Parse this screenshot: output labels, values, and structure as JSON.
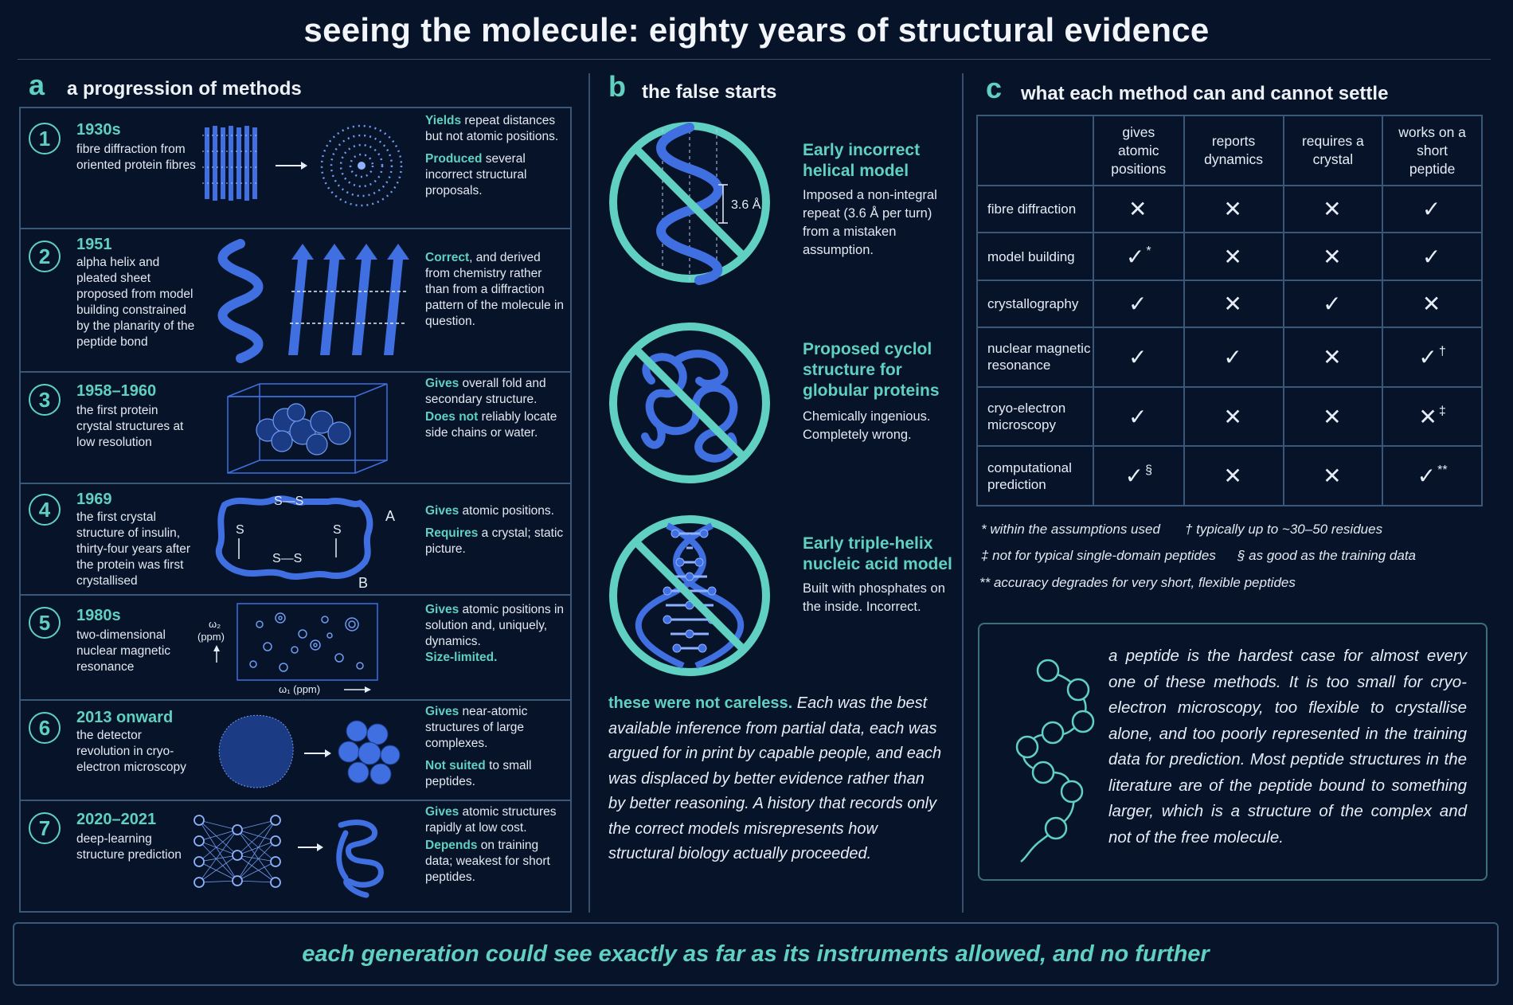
{
  "title": "seeing the molecule: eighty years of structural evidence",
  "panel_a": {
    "letter": "a",
    "heading": "a progression of methods",
    "rows": [
      {
        "num": "1",
        "year": "1930s",
        "desc": "fibre diffraction from oriented protein fibres",
        "n1_lead": "Yields",
        "n1_text": " repeat distances but not atomic positions.",
        "n2_lead": "Produced",
        "n2_text": " several incorrect structural proposals."
      },
      {
        "num": "2",
        "year": "1951",
        "desc": "alpha helix and pleated sheet proposed from model building constrained by the planarity of the peptide bond",
        "n1_lead": "Correct",
        "n1_text": ", and derived from chemistry rather than from a diffraction pattern of the molecule in question.",
        "n2_lead": "",
        "n2_text": ""
      },
      {
        "num": "3",
        "year": "1958–1960",
        "desc": "the first protein crystal structures at low resolution",
        "n1_lead": "Gives",
        "n1_text": " overall fold and secondary structure.",
        "n2_lead": "Does not",
        "n2_text": " reliably locate side chains or water."
      },
      {
        "num": "4",
        "year": "1969",
        "desc": "the first crystal structure of insulin, thirty-four years after the protein was first crystallised",
        "n1_lead": "Gives",
        "n1_text": " atomic positions.",
        "n2_lead": "Requires",
        "n2_text": " a crystal; static picture."
      },
      {
        "num": "5",
        "year": "1980s",
        "desc": "two-dimensional nuclear magnetic resonance",
        "n1_lead": "Gives",
        "n1_text": " atomic positions in solution and, uniquely, dynamics.",
        "n2_lead": "Size-limited.",
        "n2_text": ""
      },
      {
        "num": "6",
        "year": "2013 onward",
        "desc": "the detector revolution in cryo-electron microscopy",
        "n1_lead": "Gives",
        "n1_text": " near-atomic structures of large complexes.",
        "n2_lead": "Not suited",
        "n2_text": " to small peptides."
      },
      {
        "num": "7",
        "year": "2020–2021",
        "desc": "deep-learning structure prediction",
        "n1_lead": "Gives",
        "n1_text": " atomic structures rapidly at low cost.",
        "n2_lead": "Depends",
        "n2_text": " on training data; weakest for short peptides."
      }
    ],
    "labels": {
      "helix_pitch": "3.6 Å",
      "ss_top": "S—S",
      "ss_bottom": "S—S",
      "s_left": "S",
      "s_right": "S",
      "chain_a": "A",
      "chain_b": "B",
      "omega2": "ω₂",
      "omega2_unit": "(ppm)",
      "omega1": "ω₁ (ppm)"
    }
  },
  "panel_b": {
    "letter": "b",
    "heading": "the false starts",
    "items": [
      {
        "title": "Early incorrect helical model",
        "desc": "Imposed a non-integral repeat (3.6 Å per turn) from a mistaken assumption."
      },
      {
        "title": "Proposed cyclol structure for globular proteins",
        "desc": "Chemically ingenious. Completely wrong."
      },
      {
        "title": "Early triple-helix nucleic acid model",
        "desc": "Built with phosphates on the inside. Incorrect."
      }
    ],
    "para_lead": "these were not careless.",
    "para_text": " Each was the best available inference from partial data, each was argued for in print by capable people, and each was displaced by better evidence rather than by better reasoning. A history that records only the correct models misrepresents how structural biology actually proceeded."
  },
  "panel_c": {
    "letter": "c",
    "heading": "what each method can and cannot settle",
    "columns": [
      "gives atomic positions",
      "reports dynamics",
      "requires a crystal",
      "works on a short peptide"
    ],
    "rows": [
      {
        "label": "fibre diffraction",
        "cells": [
          {
            "m": "✕",
            "s": ""
          },
          {
            "m": "✕",
            "s": ""
          },
          {
            "m": "✕",
            "s": ""
          },
          {
            "m": "✓",
            "s": ""
          }
        ]
      },
      {
        "label": "model building",
        "cells": [
          {
            "m": "✓",
            "s": "*"
          },
          {
            "m": "✕",
            "s": ""
          },
          {
            "m": "✕",
            "s": ""
          },
          {
            "m": "✓",
            "s": ""
          }
        ]
      },
      {
        "label": "crystallography",
        "cells": [
          {
            "m": "✓",
            "s": ""
          },
          {
            "m": "✕",
            "s": ""
          },
          {
            "m": "✓",
            "s": ""
          },
          {
            "m": "✕",
            "s": ""
          }
        ]
      },
      {
        "label": "nuclear magnetic resonance",
        "cells": [
          {
            "m": "✓",
            "s": ""
          },
          {
            "m": "✓",
            "s": ""
          },
          {
            "m": "✕",
            "s": ""
          },
          {
            "m": "✓",
            "s": "†"
          }
        ]
      },
      {
        "label": "cryo-electron microscopy",
        "cells": [
          {
            "m": "✓",
            "s": ""
          },
          {
            "m": "✕",
            "s": ""
          },
          {
            "m": "✕",
            "s": ""
          },
          {
            "m": "✕",
            "s": "‡"
          }
        ]
      },
      {
        "label": "computational prediction",
        "cells": [
          {
            "m": "✓",
            "s": "§"
          },
          {
            "m": "✕",
            "s": ""
          },
          {
            "m": "✕",
            "s": ""
          },
          {
            "m": "✓",
            "s": "**"
          }
        ]
      }
    ],
    "footnotes": {
      "f1": "* within the assumptions used",
      "f2": "† typically up to ~30–50 residues",
      "f3": "‡ not for typical single-domain peptides",
      "f4": "§ as good as the training data",
      "f5": "** accuracy degrades for very short, flexible peptides"
    },
    "callout": "a peptide is the hardest case for almost every one of these methods. It is too small for cryo-electron microscopy, too flexible to crystallise alone, and too poorly represented in the training data for prediction. Most peptide structures in the literature are of the peptide bound to something larger, which is a structure of the complex and not of the free molecule."
  },
  "banner": "each generation could see exactly as far as its instruments allowed, and no further",
  "colors": {
    "background": "#071328",
    "accent": "#5fd0c2",
    "blue": "#3f6fe0",
    "border": "#3b5778"
  }
}
